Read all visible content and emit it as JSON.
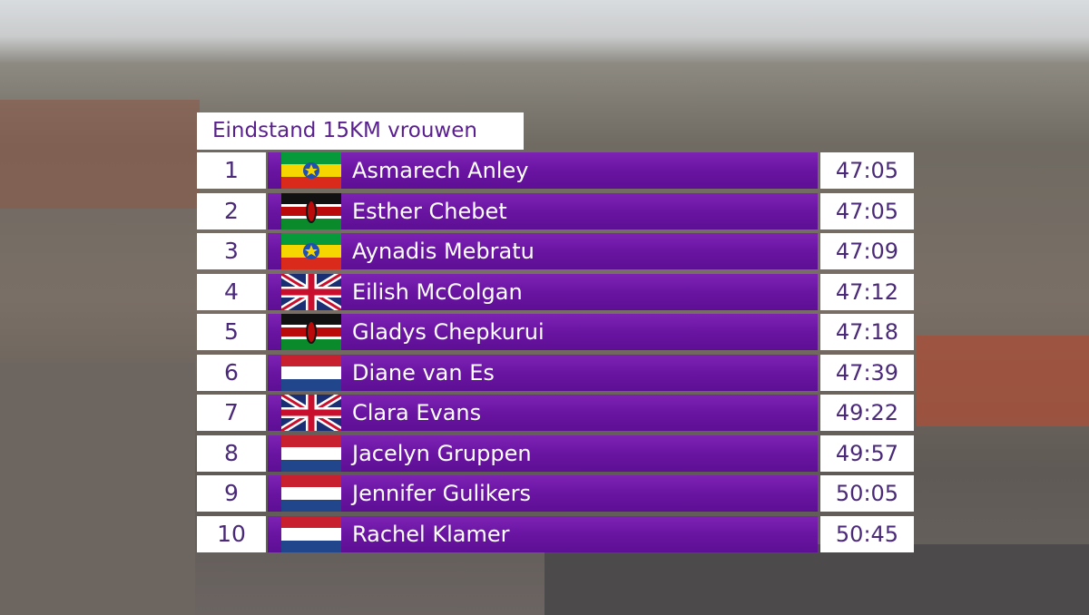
{
  "title": "Eindstand 15KM vrouwen",
  "rows": [
    {
      "rank": "1",
      "name": "Asmarech Anley",
      "time": "47:05"
    },
    {
      "rank": "2",
      "name": "Esther Chebet",
      "time": "47:05"
    },
    {
      "rank": "3",
      "name": "Aynadis Mebratu",
      "time": "47:09"
    },
    {
      "rank": "4",
      "name": "Eilish McColgan",
      "time": "47:12"
    },
    {
      "rank": "5",
      "name": "Gladys Chepkurui",
      "time": "47:18"
    },
    {
      "rank": "6",
      "name": "Diane van Es",
      "time": "47:39"
    },
    {
      "rank": "7",
      "name": "Clara Evans",
      "time": "49:22"
    },
    {
      "rank": "8",
      "name": "Jacelyn Gruppen",
      "time": "49:57"
    },
    {
      "rank": "9",
      "name": "Jennifer Gulikers",
      "time": "50:05"
    },
    {
      "rank": "10",
      "name": "Rachel Klamer",
      "time": "50:45"
    }
  ]
}
